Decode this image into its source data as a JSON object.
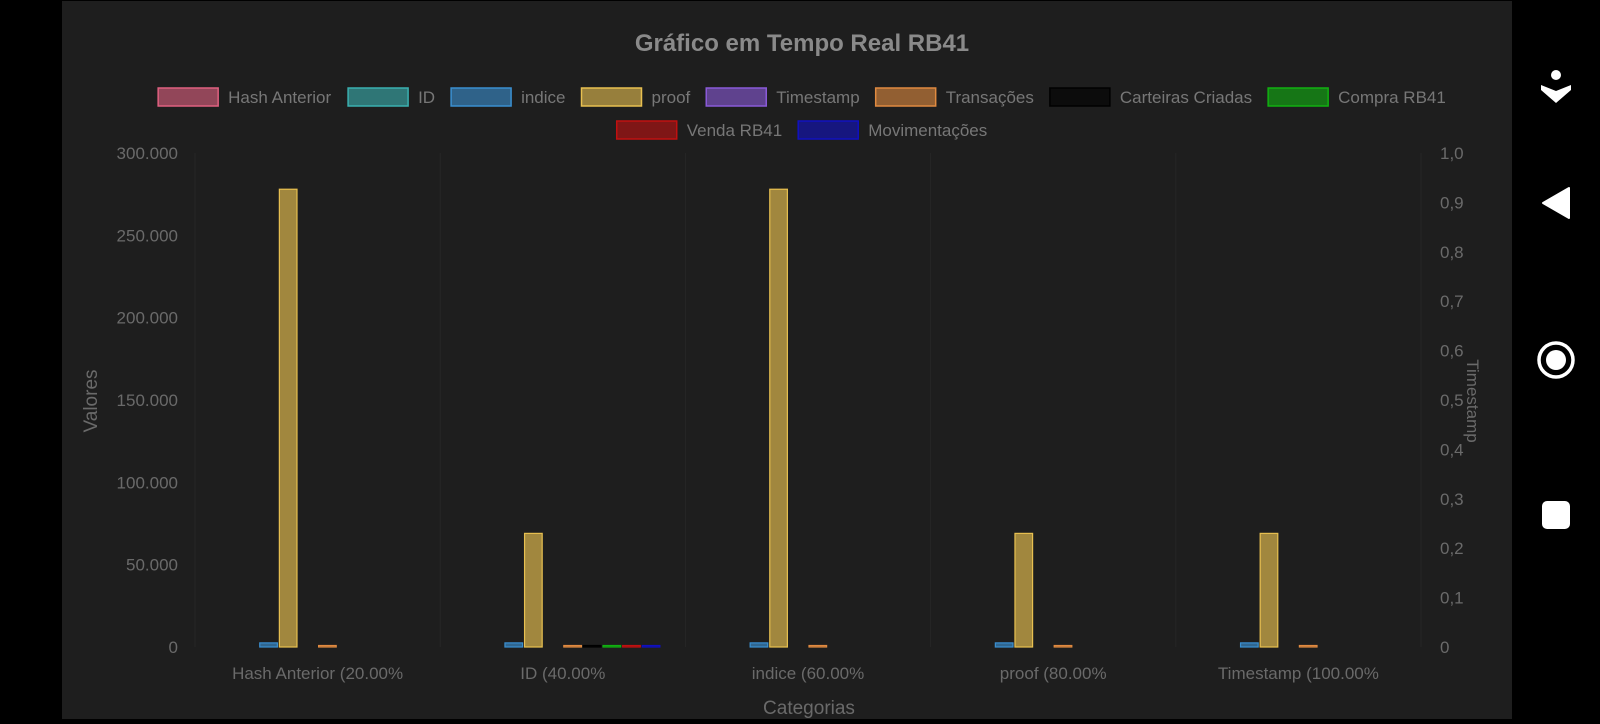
{
  "chart_data": {
    "type": "bar",
    "title": "Gráfico em Tempo Real RB41",
    "xlabel": "Categorias",
    "ylabel": "Valores",
    "y2label": "Timestamp",
    "categories": [
      "Hash Anterior (20.00%",
      "ID (40.00%",
      "indice (60.00%",
      "proof (80.00%",
      "Timestamp (100.00%"
    ],
    "ylim": [
      0,
      300000
    ],
    "y_ticks": [
      "0",
      "50.000",
      "100.000",
      "150.000",
      "200.000",
      "250.000",
      "300.000"
    ],
    "y2lim": [
      0,
      1
    ],
    "y2_ticks": [
      "0",
      "0,1",
      "0,2",
      "0,3",
      "0,4",
      "0,5",
      "0,6",
      "0,7",
      "0,8",
      "0,9",
      "1,0"
    ],
    "grid": true,
    "legend_position": "top",
    "series": [
      {
        "name": "Hash Anterior",
        "color": "#e06080",
        "values": [
          0,
          0,
          0,
          0,
          0
        ]
      },
      {
        "name": "ID",
        "color": "#3ab0b0",
        "values": [
          0,
          0,
          0,
          0,
          0
        ]
      },
      {
        "name": "indice",
        "color": "#3a8fd0",
        "values": [
          2500,
          2500,
          2500,
          2500,
          2500
        ]
      },
      {
        "name": "proof",
        "color": "#e8c050",
        "values": [
          278000,
          69000,
          278000,
          69000,
          69000
        ]
      },
      {
        "name": "Timestamp",
        "color": "#8a5ad8",
        "values": [
          0,
          0,
          0,
          0,
          0
        ]
      },
      {
        "name": "Transações",
        "color": "#e08a40",
        "values": [
          400,
          400,
          400,
          400,
          400
        ]
      },
      {
        "name": "Carteiras Criadas",
        "color": "#000000",
        "values": [
          0,
          300,
          0,
          0,
          0
        ]
      },
      {
        "name": "Compra RB41",
        "color": "#10b010",
        "values": [
          0,
          300,
          0,
          0,
          0
        ]
      },
      {
        "name": "Venda RB41",
        "color": "#c01010",
        "values": [
          0,
          300,
          0,
          0,
          0
        ]
      },
      {
        "name": "Movimentações",
        "color": "#1010c0",
        "values": [
          0,
          300,
          0,
          0,
          0
        ]
      }
    ]
  },
  "navbar": {
    "icons": [
      "accessibility-icon",
      "back-icon",
      "home-icon",
      "recents-icon"
    ]
  }
}
